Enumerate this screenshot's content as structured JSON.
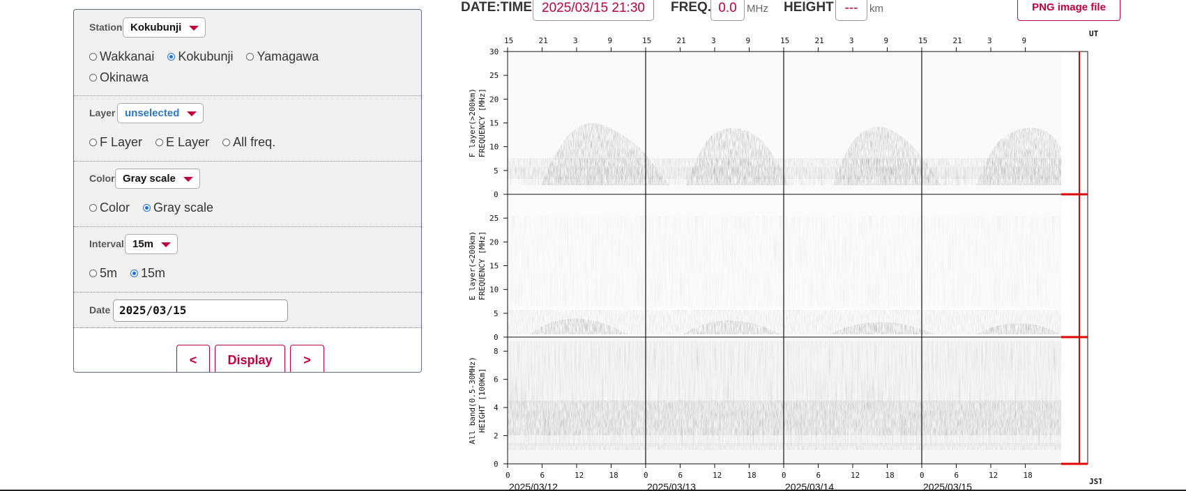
{
  "panel": {
    "station": {
      "label": "Station",
      "selected": "Kokubunji",
      "options": [
        "Wakkanai",
        "Kokubunji",
        "Yamagawa",
        "Okinawa"
      ]
    },
    "layer": {
      "label": "Layer",
      "selected": "unselected",
      "options": [
        "F Layer",
        "E Layer",
        "All freq."
      ]
    },
    "color": {
      "label": "Color",
      "selected": "Gray scale",
      "options": [
        "Color",
        "Gray scale"
      ]
    },
    "interval": {
      "label": "Interval",
      "selected": "15m",
      "options": [
        "5m",
        "15m"
      ]
    },
    "date": {
      "label": "Date",
      "value": "2025/03/15"
    },
    "buttons": {
      "prev": "<",
      "display": "Display",
      "next": ">"
    }
  },
  "readout": {
    "datetime_label": "DATE:TIME",
    "datetime_value": "2025/03/15 21:30",
    "freq_label": "FREQ.",
    "freq_value": "0.0",
    "freq_unit": "MHz",
    "height_label": "HEIGHT",
    "height_value": "---",
    "height_unit": "km",
    "png_button": "PNG image file"
  },
  "plot": {
    "ut_label": "UT",
    "jst_label": "JST",
    "ut_ticks": [
      "15",
      "21",
      "3",
      "9",
      "15",
      "21",
      "3",
      "9",
      "15",
      "21",
      "3",
      "9",
      "15",
      "21",
      "3",
      "9"
    ],
    "jst_ticks": [
      "0",
      "6",
      "12",
      "18",
      "0",
      "6",
      "12",
      "18",
      "0",
      "6",
      "12",
      "18",
      "0",
      "6",
      "12",
      "18"
    ],
    "dates": [
      "2025/03/12",
      "2025/03/13",
      "2025/03/14",
      "2025/03/15"
    ],
    "panels": [
      {
        "ylabel1": "F layer(>200km)",
        "ylabel2": "FREQUENCY [MHz]",
        "yticks": [
          "0",
          "5",
          "10",
          "15",
          "20",
          "25",
          "30"
        ]
      },
      {
        "ylabel1": "E layer(<200km)",
        "ylabel2": "FREQUENCY [MHz]",
        "yticks": [
          "0",
          "5",
          "10",
          "15",
          "20",
          "25"
        ]
      },
      {
        "ylabel1": "All band(0.5-30MHz)",
        "ylabel2": "HEIGHT [100Km]",
        "yticks": [
          "0",
          "2",
          "4",
          "6",
          "8"
        ]
      }
    ],
    "cursor_color": "#e00000"
  }
}
